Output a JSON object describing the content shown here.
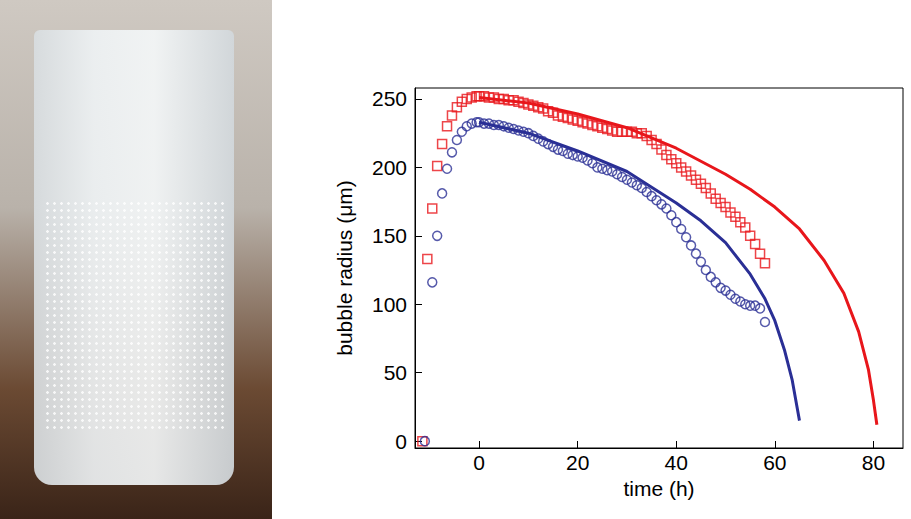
{
  "chart_data": {
    "type": "scatter",
    "x_label": "time (h)",
    "y_label": "bubble radius (μm)",
    "xlim": [
      -13,
      86
    ],
    "ylim": [
      -5,
      258
    ],
    "xticks": [
      0,
      20,
      40,
      60,
      80
    ],
    "yticks": [
      0,
      50,
      100,
      150,
      200,
      250
    ],
    "grid": false,
    "series": [
      {
        "type": "scatter",
        "color": "#e8161b",
        "marker": "square",
        "x": [
          -11.5,
          -10.5,
          -9.5,
          -8.5,
          -7.5,
          -6.5,
          -5.5,
          -4.5,
          -3.5,
          -2.5,
          -1.5,
          -0.5,
          0,
          1,
          2,
          3,
          4,
          5,
          6,
          7,
          8,
          9,
          10,
          11,
          12,
          13,
          14,
          15,
          16,
          17,
          18,
          19,
          20,
          21,
          22,
          23,
          24,
          25,
          26,
          27,
          28,
          29,
          30,
          31,
          32,
          33,
          34,
          35,
          36,
          37,
          38,
          39,
          40,
          41,
          42,
          43,
          44,
          45,
          46,
          47,
          48,
          49,
          50,
          51,
          52,
          53,
          54,
          55,
          56,
          57,
          58
        ],
        "values": [
          0,
          133,
          170,
          201,
          217,
          230,
          238,
          244,
          248,
          250,
          251,
          252,
          252,
          252,
          251,
          251,
          250,
          250,
          249,
          249,
          248,
          247,
          246,
          245,
          244,
          243,
          241,
          240,
          238,
          237,
          236,
          235,
          234,
          233,
          232,
          231,
          230,
          229,
          228,
          227,
          226,
          226,
          226,
          226,
          225,
          225,
          223,
          220,
          217,
          213,
          209,
          206,
          203,
          200,
          197,
          194,
          191,
          188,
          185,
          181,
          177,
          174,
          171,
          167,
          164,
          160,
          156,
          150,
          144,
          137,
          130
        ]
      },
      {
        "type": "scatter",
        "color": "#2a2f95",
        "marker": "circle",
        "x": [
          -11,
          -9.5,
          -8.5,
          -7.5,
          -6.5,
          -5.5,
          -4.5,
          -3.5,
          -2.5,
          -1.5,
          -0.5,
          0,
          1,
          2,
          3,
          4,
          5,
          6,
          7,
          8,
          9,
          10,
          11,
          12,
          13,
          14,
          15,
          16,
          17,
          18,
          19,
          20,
          21,
          22,
          23,
          24,
          25,
          26,
          27,
          28,
          29,
          30,
          31,
          32,
          33,
          34,
          35,
          36,
          37,
          38,
          39,
          40,
          41,
          42,
          43,
          44,
          45,
          46,
          47,
          48,
          49,
          50,
          51,
          52,
          53,
          54,
          55,
          56,
          57,
          58
        ],
        "values": [
          0,
          116,
          150,
          181,
          199,
          211,
          220,
          226,
          230,
          232,
          233,
          233,
          232,
          232,
          231,
          231,
          230,
          229,
          228,
          227,
          226,
          225,
          223,
          221,
          219,
          217,
          215,
          213,
          212,
          210,
          209,
          208,
          207,
          205,
          203,
          200,
          199,
          198,
          197,
          195,
          193,
          191,
          189,
          187,
          185,
          182,
          179,
          176,
          173,
          170,
          165,
          160,
          155,
          149,
          143,
          137,
          131,
          125,
          120,
          116,
          112,
          110,
          107,
          104,
          102,
          100,
          99,
          99,
          97,
          87
        ]
      },
      {
        "type": "line",
        "color": "#e8161b",
        "line_style": "solid",
        "marker": "none",
        "x": [
          0,
          10,
          20,
          30,
          40,
          50,
          55,
          60,
          65,
          70,
          74,
          77,
          79,
          80,
          80.7
        ],
        "values": [
          251,
          247,
          239,
          229,
          214,
          195,
          184,
          171,
          155,
          132,
          108,
          80,
          52,
          30,
          12
        ]
      },
      {
        "type": "line",
        "color": "#2a2f95",
        "line_style": "solid",
        "marker": "none",
        "x": [
          0,
          10,
          20,
          30,
          40,
          45,
          50,
          55,
          58,
          60,
          62,
          63.5,
          64.5,
          65
        ],
        "values": [
          233,
          225,
          212,
          197,
          174,
          161,
          145,
          122,
          104,
          88,
          66,
          45,
          25,
          15
        ]
      }
    ]
  }
}
